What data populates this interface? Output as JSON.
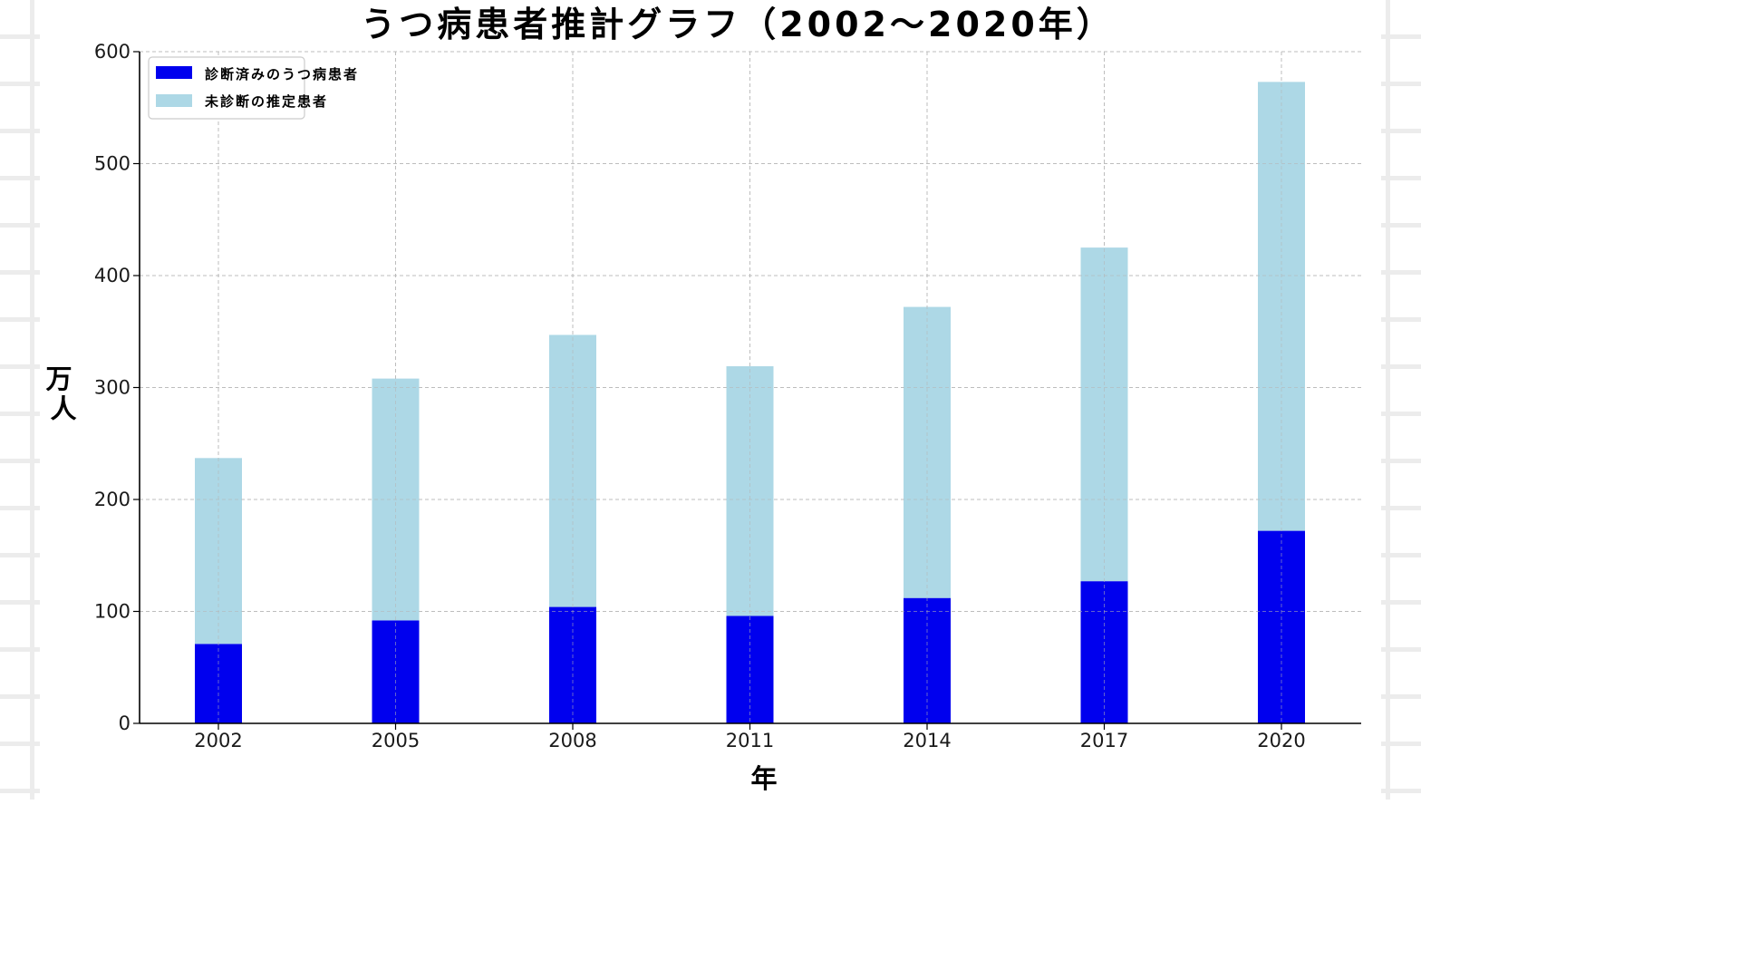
{
  "chart_data": {
    "type": "bar",
    "stacked": true,
    "title": "うつ病患者推計グラフ（2002〜2020年）",
    "xlabel": "年",
    "ylabel": "万人",
    "categories": [
      "2002",
      "2005",
      "2008",
      "2011",
      "2014",
      "2017",
      "2020"
    ],
    "series": [
      {
        "name": "診断済みのうつ病患者",
        "color": "#0000ee",
        "values": [
          71,
          92,
          104,
          96,
          112,
          127,
          172
        ]
      },
      {
        "name": "未診断の推定患者",
        "color": "#add8e6",
        "values": [
          166,
          216,
          243,
          223,
          260,
          298,
          401
        ]
      }
    ],
    "ylim": [
      0,
      600
    ],
    "yticks": [
      0,
      100,
      200,
      300,
      400,
      500,
      600
    ],
    "grid": true,
    "legend_position": "top-left"
  }
}
